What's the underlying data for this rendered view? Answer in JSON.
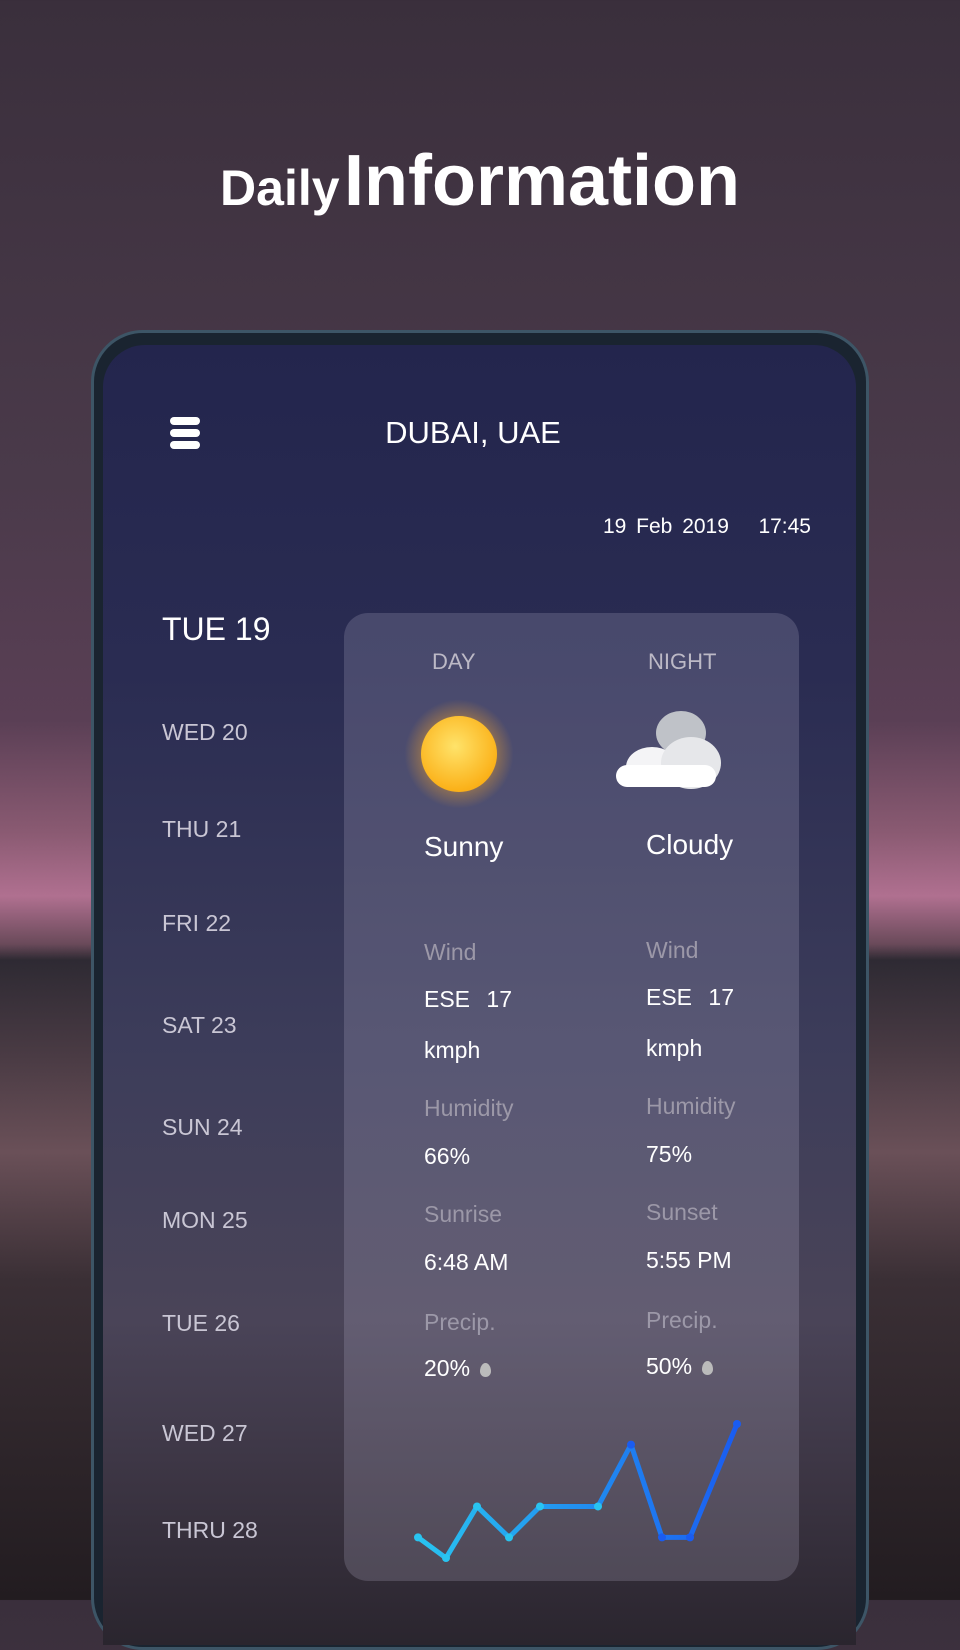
{
  "headline": {
    "light": "Daily",
    "bold": "Information"
  },
  "header": {
    "city": "DUBAI, UAE",
    "date": "19 Feb 2019",
    "time": "17:45"
  },
  "days": [
    "TUE 19",
    "WED 20",
    "THU 21",
    "FRI 22",
    "SAT 23",
    "SUN 24",
    "MON 25",
    "TUE 26",
    "WED 27",
    "THRU 28"
  ],
  "selected_day": "TUE 19",
  "day": {
    "label": "DAY",
    "icon": "sun-icon",
    "condition": "Sunny",
    "wind_label": "Wind",
    "wind_dir": "ESE",
    "wind_speed": "17",
    "wind_unit": "kmph",
    "humidity_label": "Humidity",
    "humidity": "66%",
    "sun_label": "Sunrise",
    "sun_time": "6:48 AM",
    "precip_label": "Precip.",
    "precip": "20%"
  },
  "night": {
    "label": "NIGHT",
    "icon": "cloud-icon",
    "condition": "Cloudy",
    "wind_label": "Wind",
    "wind_dir": "ESE",
    "wind_speed": "17",
    "wind_unit": "kmph",
    "humidity_label": "Humidity",
    "humidity": "75%",
    "sun_label": "Sunset",
    "sun_time": "5:55 PM",
    "precip_label": "Precip.",
    "precip": "50%"
  },
  "chart_data": {
    "type": "line",
    "values": [
      2,
      0,
      5,
      2,
      5,
      5,
      11,
      2,
      2,
      13
    ],
    "colors": [
      "#29c4f0",
      "#1a5cf0"
    ],
    "grid": false
  }
}
